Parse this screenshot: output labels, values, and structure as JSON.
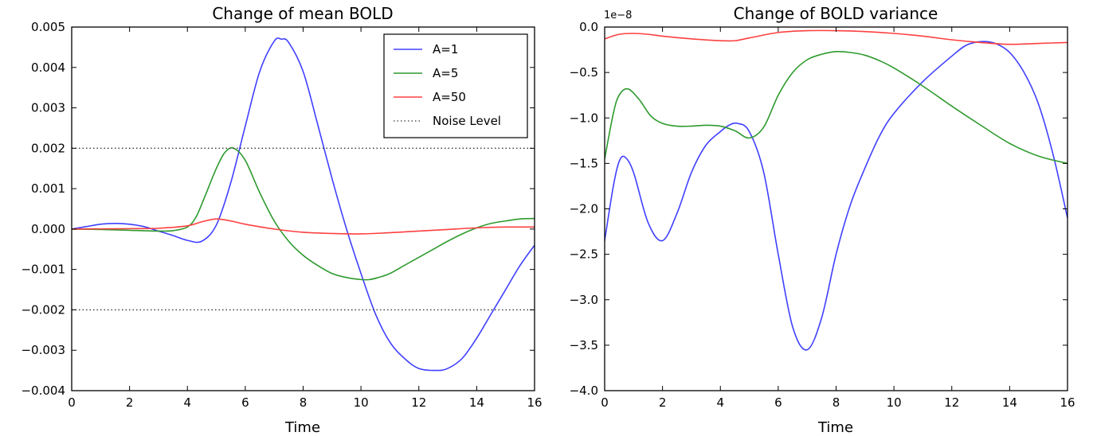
{
  "colors": {
    "A=1": "#4040ff",
    "A=5": "#2e9a2e",
    "A=50": "#ff4040",
    "noise": "#333333"
  },
  "chart_data": [
    {
      "type": "line",
      "title": "Change of mean BOLD",
      "xlabel": "Time",
      "ylabel": "",
      "xlim": [
        0,
        16
      ],
      "ylim": [
        -0.004,
        0.005
      ],
      "xticks": [
        0,
        2,
        4,
        6,
        8,
        10,
        12,
        14,
        16
      ],
      "yticks": [
        -0.004,
        -0.003,
        -0.002,
        -0.001,
        0.0,
        0.001,
        0.002,
        0.003,
        0.004,
        0.005
      ],
      "xtick_labels": [
        "0",
        "2",
        "4",
        "6",
        "8",
        "10",
        "12",
        "14",
        "16"
      ],
      "ytick_labels": [
        "−0.004",
        "−0.003",
        "−0.002",
        "−0.001",
        "0.000",
        "0.001",
        "0.002",
        "0.003",
        "0.004",
        "0.005"
      ],
      "legend": {
        "position": "top-right",
        "entries": [
          "A=1",
          "A=5",
          "A=50",
          "Noise Level"
        ]
      },
      "grid": false,
      "series": [
        {
          "name": "A=1",
          "x": [
            0,
            0.5,
            1,
            1.5,
            2,
            2.5,
            3,
            3.5,
            4,
            4.5,
            5,
            5.5,
            6,
            6.5,
            7,
            7.25,
            7.5,
            8,
            8.5,
            9,
            9.5,
            10,
            10.5,
            11,
            11.5,
            12,
            12.6,
            13,
            13.5,
            14,
            14.5,
            15,
            15.5,
            16
          ],
          "y": [
            0,
            6e-05,
            0.00012,
            0.00014,
            0.00012,
            6e-05,
            -5e-05,
            -0.00016,
            -0.00028,
            -0.0003,
            0.0001,
            0.00115,
            0.00255,
            0.0039,
            0.00465,
            0.0047,
            0.00462,
            0.0039,
            0.0026,
            0.00125,
            0.0,
            -0.0011,
            -0.0021,
            -0.0028,
            -0.0032,
            -0.00345,
            -0.0035,
            -0.00345,
            -0.0032,
            -0.0027,
            -0.0021,
            -0.0015,
            -0.0009,
            -0.0004
          ]
        },
        {
          "name": "A=5",
          "x": [
            0,
            1,
            2,
            3,
            3.5,
            4,
            4.3,
            4.6,
            5,
            5.3,
            5.6,
            6,
            6.5,
            7,
            7.5,
            8,
            8.5,
            9,
            9.5,
            10,
            10.3,
            10.6,
            11,
            11.5,
            12,
            12.5,
            13,
            13.5,
            14,
            14.5,
            15,
            15.5,
            16
          ],
          "y": [
            0,
            -1e-05,
            -3e-05,
            -5e-05,
            -4e-05,
            5e-05,
            0.0003,
            0.0008,
            0.0015,
            0.0019,
            0.002,
            0.0017,
            0.0009,
            0.0002,
            -0.0003,
            -0.00065,
            -0.0009,
            -0.0011,
            -0.0012,
            -0.00125,
            -0.00125,
            -0.0012,
            -0.0011,
            -0.0009,
            -0.0007,
            -0.0005,
            -0.0003,
            -0.00012,
            3e-05,
            0.00014,
            0.0002,
            0.00025,
            0.00026
          ]
        },
        {
          "name": "A=50",
          "x": [
            0,
            1,
            2,
            3,
            4,
            4.5,
            5,
            5.5,
            6,
            7,
            8,
            9,
            10,
            11,
            12,
            13,
            14,
            15,
            16
          ],
          "y": [
            0,
            5e-06,
            1e-05,
            2e-05,
            8e-05,
            0.00018,
            0.00025,
            0.0002,
            0.00012,
            0.0,
            -8e-05,
            -0.00011,
            -0.00012,
            -9e-05,
            -5e-05,
            -1e-05,
            3e-05,
            5e-05,
            5e-05
          ]
        },
        {
          "name": "Noise Level",
          "style": "dotted",
          "y_levels": [
            0.002,
            -0.002
          ]
        }
      ]
    },
    {
      "type": "line",
      "title": "Change of BOLD variance",
      "xlabel": "Time",
      "ylabel": "",
      "offset_label": "1e−8",
      "xlim": [
        0,
        16
      ],
      "ylim": [
        -4.0,
        0.0
      ],
      "xticks": [
        0,
        2,
        4,
        6,
        8,
        10,
        12,
        14,
        16
      ],
      "yticks": [
        -4.0,
        -3.5,
        -3.0,
        -2.5,
        -2.0,
        -1.5,
        -1.0,
        -0.5,
        0.0
      ],
      "xtick_labels": [
        "0",
        "2",
        "4",
        "6",
        "8",
        "10",
        "12",
        "14",
        "16"
      ],
      "ytick_labels": [
        "−4.0",
        "−3.5",
        "−3.0",
        "−2.5",
        "−2.0",
        "−1.5",
        "−1.0",
        "−0.5",
        "0.0"
      ],
      "grid": false,
      "series": [
        {
          "name": "A=1",
          "x": [
            0,
            0.3,
            0.5,
            0.7,
            1,
            1.5,
            2,
            2.5,
            3,
            3.5,
            4,
            4.3,
            4.6,
            5,
            5.5,
            6,
            6.5,
            7,
            7.5,
            8,
            8.5,
            9,
            9.5,
            10,
            11,
            12,
            12.5,
            13,
            13.5,
            14,
            14.5,
            15,
            15.5,
            16
          ],
          "y": [
            -2.35,
            -1.75,
            -1.48,
            -1.43,
            -1.6,
            -2.15,
            -2.35,
            -2.05,
            -1.6,
            -1.3,
            -1.15,
            -1.08,
            -1.06,
            -1.15,
            -1.6,
            -2.5,
            -3.3,
            -3.55,
            -3.2,
            -2.5,
            -1.95,
            -1.55,
            -1.2,
            -0.95,
            -0.6,
            -0.32,
            -0.2,
            -0.16,
            -0.18,
            -0.28,
            -0.5,
            -0.85,
            -1.4,
            -2.1
          ]
        },
        {
          "name": "A=5",
          "x": [
            0,
            0.3,
            0.5,
            0.8,
            1.2,
            1.6,
            2,
            2.5,
            3,
            3.5,
            4,
            4.5,
            5,
            5.5,
            6,
            6.5,
            7,
            7.5,
            8,
            8.5,
            9,
            9.5,
            10,
            11,
            12,
            13,
            14,
            15,
            16
          ],
          "y": [
            -1.45,
            -0.95,
            -0.75,
            -0.68,
            -0.8,
            -0.98,
            -1.06,
            -1.09,
            -1.09,
            -1.08,
            -1.09,
            -1.14,
            -1.22,
            -1.1,
            -0.75,
            -0.5,
            -0.36,
            -0.3,
            -0.27,
            -0.28,
            -0.31,
            -0.37,
            -0.45,
            -0.65,
            -0.87,
            -1.08,
            -1.28,
            -1.42,
            -1.5
          ]
        },
        {
          "name": "A=50",
          "x": [
            0,
            0.5,
            1,
            1.5,
            2,
            3,
            4,
            4.5,
            5,
            6,
            7,
            8,
            9,
            10,
            11,
            12,
            13,
            14,
            15,
            16
          ],
          "y": [
            -0.13,
            -0.08,
            -0.07,
            -0.08,
            -0.1,
            -0.13,
            -0.15,
            -0.15,
            -0.12,
            -0.06,
            -0.04,
            -0.04,
            -0.05,
            -0.07,
            -0.1,
            -0.14,
            -0.17,
            -0.19,
            -0.18,
            -0.17
          ]
        }
      ]
    }
  ]
}
